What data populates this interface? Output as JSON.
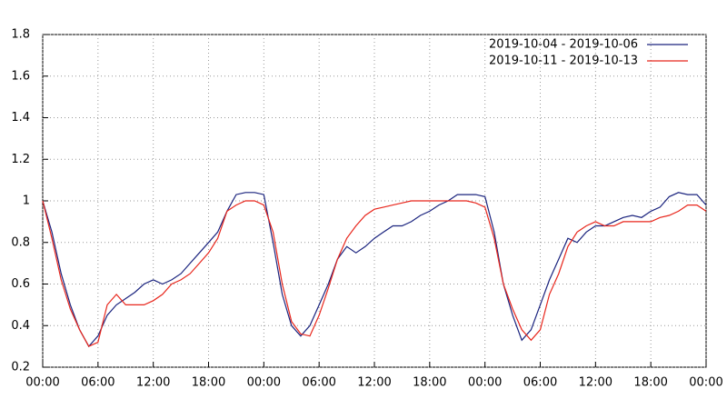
{
  "chart_data": {
    "type": "line",
    "x": [
      0,
      1,
      2,
      3,
      4,
      5,
      6,
      7,
      8,
      9,
      10,
      11,
      12,
      13,
      14,
      15,
      16,
      17,
      18,
      19,
      20,
      21,
      22,
      23,
      24,
      25,
      26,
      27,
      28,
      29,
      30,
      31,
      32,
      33,
      34,
      35,
      36,
      37,
      38,
      39,
      40,
      41,
      42,
      43,
      44,
      45,
      46,
      47,
      48,
      49,
      50,
      51,
      52,
      53,
      54,
      55,
      56,
      57,
      58,
      59,
      60,
      61,
      62,
      63,
      64,
      65,
      66,
      67,
      68,
      69,
      70,
      71,
      72
    ],
    "series": [
      {
        "name": "2019-10-04 - 2019-10-06",
        "color": "#1a237e",
        "values": [
          1.0,
          0.85,
          0.65,
          0.5,
          0.38,
          0.3,
          0.35,
          0.45,
          0.5,
          0.53,
          0.56,
          0.6,
          0.62,
          0.6,
          0.62,
          0.65,
          0.7,
          0.75,
          0.8,
          0.85,
          0.95,
          1.03,
          1.04,
          1.04,
          1.03,
          0.8,
          0.55,
          0.4,
          0.35,
          0.4,
          0.5,
          0.6,
          0.72,
          0.78,
          0.75,
          0.78,
          0.82,
          0.85,
          0.88,
          0.88,
          0.9,
          0.93,
          0.95,
          0.98,
          1.0,
          1.03,
          1.03,
          1.03,
          1.02,
          0.85,
          0.6,
          0.45,
          0.33,
          0.38,
          0.5,
          0.62,
          0.72,
          0.82,
          0.8,
          0.85,
          0.88,
          0.88,
          0.9,
          0.92,
          0.93,
          0.92,
          0.95,
          0.97,
          1.02,
          1.04,
          1.03,
          1.03,
          0.98
        ]
      },
      {
        "name": "2019-10-11 - 2019-10-13",
        "color": "#e8261c",
        "values": [
          1.0,
          0.82,
          0.62,
          0.48,
          0.38,
          0.3,
          0.32,
          0.5,
          0.55,
          0.5,
          0.5,
          0.5,
          0.52,
          0.55,
          0.6,
          0.62,
          0.65,
          0.7,
          0.75,
          0.82,
          0.95,
          0.98,
          1.0,
          1.0,
          0.98,
          0.85,
          0.6,
          0.42,
          0.36,
          0.35,
          0.45,
          0.58,
          0.72,
          0.82,
          0.88,
          0.93,
          0.96,
          0.97,
          0.98,
          0.99,
          1.0,
          1.0,
          1.0,
          1.0,
          1.0,
          1.0,
          1.0,
          0.99,
          0.97,
          0.82,
          0.6,
          0.48,
          0.38,
          0.33,
          0.38,
          0.55,
          0.65,
          0.78,
          0.85,
          0.88,
          0.9,
          0.88,
          0.88,
          0.9,
          0.9,
          0.9,
          0.9,
          0.92,
          0.93,
          0.95,
          0.98,
          0.98,
          0.95
        ]
      }
    ],
    "xlim": [
      0,
      72
    ],
    "xticks": [
      {
        "value": 0,
        "label": "00:00"
      },
      {
        "value": 6,
        "label": "06:00"
      },
      {
        "value": 12,
        "label": "12:00"
      },
      {
        "value": 18,
        "label": "18:00"
      },
      {
        "value": 24,
        "label": "00:00"
      },
      {
        "value": 30,
        "label": "06:00"
      },
      {
        "value": 36,
        "label": "12:00"
      },
      {
        "value": 42,
        "label": "18:00"
      },
      {
        "value": 48,
        "label": "00:00"
      },
      {
        "value": 54,
        "label": "06:00"
      },
      {
        "value": 60,
        "label": "12:00"
      },
      {
        "value": 66,
        "label": "18:00"
      },
      {
        "value": 72,
        "label": "00:00"
      }
    ],
    "ylim": [
      0.2,
      1.8
    ],
    "yticks": [
      0.2,
      0.4,
      0.6,
      0.8,
      1,
      1.2,
      1.4,
      1.6,
      1.8
    ],
    "grid": true,
    "legend": "top-right"
  }
}
